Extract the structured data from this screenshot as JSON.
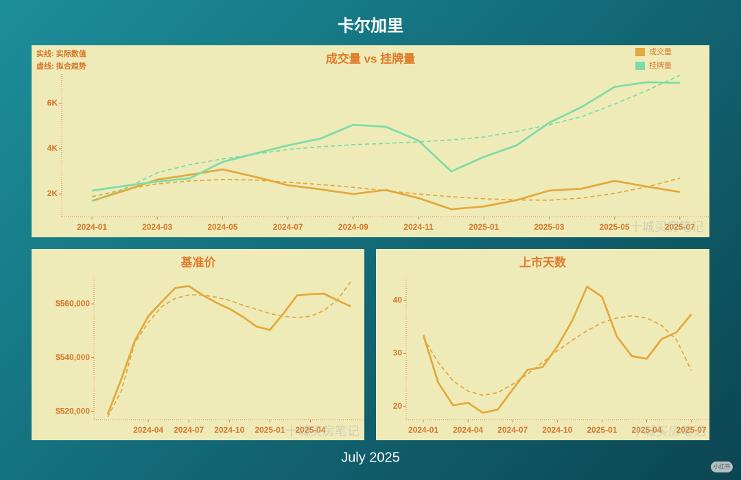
{
  "title": "卡尔加里",
  "footer": "July 2025",
  "watermark": "十城买房笔记",
  "badge": "小红书",
  "chart_data": [
    {
      "type": "line",
      "title": "成交量 vs 挂牌量",
      "annotations": [
        "实线: 实际数值",
        "虚线: 拟合趋势"
      ],
      "legend": "upper right",
      "categories": [
        "2024-01",
        null,
        "2024-03",
        null,
        "2024-05",
        null,
        "2024-07",
        null,
        "2024-09",
        null,
        "2024-11",
        null,
        "2025-01",
        null,
        "2025-03",
        null,
        "2025-05",
        null,
        "2025-07"
      ],
      "series": [
        {
          "name": "成交量",
          "color": "#e3a93c",
          "values": [
            1700,
            2150,
            2640,
            2850,
            3090,
            2760,
            2390,
            2210,
            2000,
            2180,
            1820,
            1330,
            1450,
            1730,
            2150,
            2240,
            2580,
            2330,
            2090
          ],
          "trend": [
            1880,
            2200,
            2450,
            2580,
            2640,
            2620,
            2520,
            2420,
            2300,
            2150,
            2000,
            1880,
            1790,
            1740,
            1730,
            1820,
            2030,
            2320,
            2700
          ]
        },
        {
          "name": "挂牌量",
          "color": "#7ddca8",
          "values": [
            2150,
            2360,
            2550,
            2700,
            3420,
            3790,
            4150,
            4450,
            5060,
            4970,
            4360,
            3000,
            3640,
            4150,
            5150,
            5850,
            6730,
            6940,
            6910
          ],
          "trend": [
            1700,
            2240,
            2940,
            3300,
            3550,
            3760,
            3970,
            4090,
            4180,
            4240,
            4300,
            4390,
            4520,
            4760,
            5060,
            5420,
            5970,
            6580,
            7240
          ]
        }
      ],
      "ylim": [
        1000,
        7300
      ],
      "yticks": [
        {
          "value": 2000,
          "label": "2K"
        },
        {
          "value": 4000,
          "label": "4K"
        },
        {
          "value": 6000,
          "label": "6K"
        }
      ]
    },
    {
      "type": "line",
      "title": "基准价",
      "color": "#e3a93c",
      "categories": [
        null,
        null,
        null,
        "2024-04",
        null,
        null,
        "2024-07",
        null,
        null,
        "2024-10",
        null,
        null,
        "2025-01",
        null,
        null,
        "2025-04",
        null,
        null,
        null
      ],
      "values": [
        519000,
        532000,
        546200,
        555400,
        560800,
        565900,
        566600,
        563300,
        560500,
        558200,
        555200,
        551600,
        550300,
        556400,
        563100,
        563600,
        563800,
        561300,
        559000
      ],
      "trend": [
        518000,
        527600,
        545500,
        553100,
        559000,
        562000,
        563300,
        563300,
        562500,
        561300,
        559500,
        558000,
        556400,
        555400,
        554900,
        555400,
        557500,
        561500,
        568400
      ],
      "ylim": [
        517000,
        569700
      ],
      "yticks": [
        {
          "value": 520000,
          "label": "$520,000"
        },
        {
          "value": 540000,
          "label": "$540,000"
        },
        {
          "value": 560000,
          "label": "$560,000"
        }
      ]
    },
    {
      "type": "line",
      "title": "上市天数",
      "color": "#e3a93c",
      "categories": [
        "2024-01",
        null,
        null,
        "2024-04",
        null,
        null,
        "2024-07",
        null,
        null,
        "2024-10",
        null,
        null,
        "2025-01",
        null,
        null,
        "2025-04",
        null,
        null,
        "2025-07"
      ],
      "values": [
        33.5,
        24.5,
        20.2,
        20.7,
        18.8,
        19.4,
        23.2,
        26.9,
        27.4,
        31.3,
        36.2,
        42.6,
        40.7,
        33.2,
        29.5,
        29.0,
        32.7,
        34.0,
        37.4
      ],
      "trend": [
        33.0,
        28.3,
        24.8,
        22.9,
        22.1,
        22.6,
        24.2,
        26.1,
        28.3,
        30.5,
        32.5,
        34.3,
        35.8,
        36.7,
        37.1,
        36.7,
        35.3,
        32.6,
        26.8
      ],
      "ylim": [
        17.5,
        44.3
      ],
      "yticks": [
        20,
        30,
        40
      ]
    }
  ]
}
